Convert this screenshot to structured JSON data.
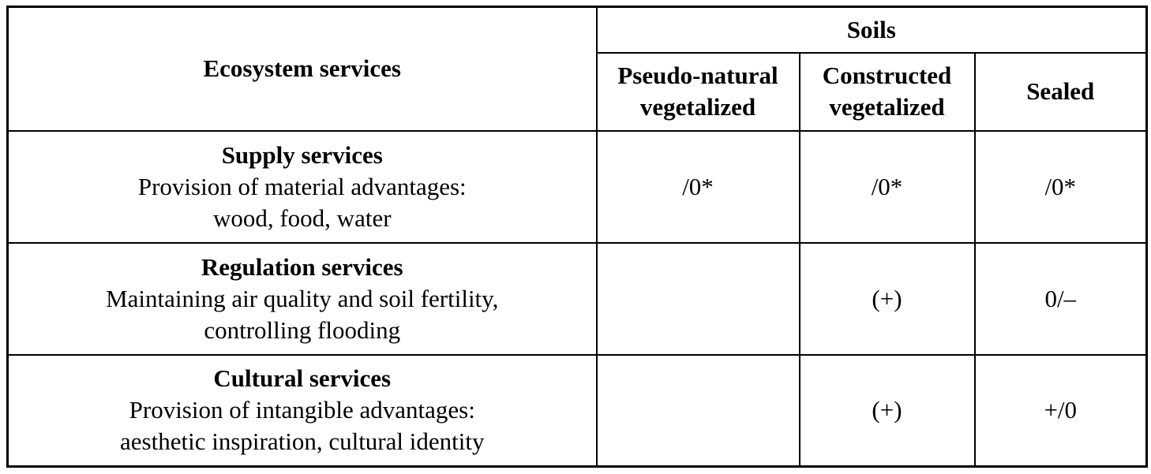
{
  "table": {
    "row_axis_header": "Ecosystem services",
    "column_group_header": "Soils",
    "column_headers": [
      "Pseudo-natural vegetalized",
      "Constructed vegetalized",
      "Sealed"
    ],
    "rows": [
      {
        "name": "Supply services",
        "description_line1": "Provision of material advantages:",
        "description_line2": "wood, food, water",
        "values": [
          "/0*",
          "/0*",
          "/0*"
        ]
      },
      {
        "name": "Regulation services",
        "description_line1": "Maintaining air quality and soil fertility,",
        "description_line2": "controlling flooding",
        "values": [
          "",
          "(+)",
          "0/–"
        ]
      },
      {
        "name": "Cultural services",
        "description_line1": "Provision of intangible advantages:",
        "description_line2": "aesthetic inspiration, cultural identity",
        "values": [
          "",
          "(+)",
          "+/0"
        ]
      }
    ]
  },
  "chart_data": {
    "type": "table",
    "title": "",
    "row_header": "Ecosystem services",
    "column_group": "Soils",
    "columns": [
      "Pseudo-natural vegetalized",
      "Constructed vegetalized",
      "Sealed"
    ],
    "rows": [
      {
        "ecosystem_service": "Supply services — Provision of material advantages: wood, food, water",
        "pseudo_natural_vegetalized": "/0*",
        "constructed_vegetalized": "/0*",
        "sealed": "/0*"
      },
      {
        "ecosystem_service": "Regulation services — Maintaining air quality and soil fertility, controlling flooding",
        "pseudo_natural_vegetalized": "",
        "constructed_vegetalized": "(+)",
        "sealed": "0/–"
      },
      {
        "ecosystem_service": "Cultural services — Provision of intangible advantages: aesthetic inspiration, cultural identity",
        "pseudo_natural_vegetalized": "",
        "constructed_vegetalized": "(+)",
        "sealed": "+/0"
      }
    ]
  },
  "colors": {
    "border": "#000000",
    "text": "#000000",
    "background": "#ffffff"
  }
}
